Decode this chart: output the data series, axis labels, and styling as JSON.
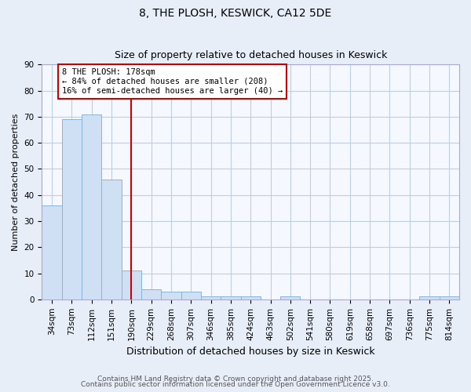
{
  "title1": "8, THE PLOSH, KESWICK, CA12 5DE",
  "title2": "Size of property relative to detached houses in Keswick",
  "xlabel": "Distribution of detached houses by size in Keswick",
  "ylabel": "Number of detached properties",
  "categories": [
    "34sqm",
    "73sqm",
    "112sqm",
    "151sqm",
    "190sqm",
    "229sqm",
    "268sqm",
    "307sqm",
    "346sqm",
    "385sqm",
    "424sqm",
    "463sqm",
    "502sqm",
    "541sqm",
    "580sqm",
    "619sqm",
    "658sqm",
    "697sqm",
    "736sqm",
    "775sqm",
    "814sqm"
  ],
  "values": [
    36,
    69,
    71,
    46,
    11,
    4,
    3,
    3,
    1,
    1,
    1,
    0,
    1,
    0,
    0,
    0,
    0,
    0,
    0,
    1,
    1
  ],
  "bar_color": "#cfe0f5",
  "bar_edge_color": "#89b4d9",
  "vline_x_index": 4,
  "vline_color": "#cc0000",
  "annotation_text": "8 THE PLOSH: 178sqm\n← 84% of detached houses are smaller (208)\n16% of semi-detached houses are larger (40) →",
  "annotation_box_color": "#cc0000",
  "ylim": [
    0,
    90
  ],
  "yticks": [
    0,
    10,
    20,
    30,
    40,
    50,
    60,
    70,
    80,
    90
  ],
  "footnote1": "Contains HM Land Registry data © Crown copyright and database right 2025.",
  "footnote2": "Contains public sector information licensed under the Open Government Licence v3.0.",
  "bg_color": "#e8eef8",
  "plot_bg_color": "#f5f8ff",
  "grid_color": "#c0cfe0",
  "title_fontsize": 10,
  "subtitle_fontsize": 9,
  "xlabel_fontsize": 9,
  "ylabel_fontsize": 8,
  "tick_fontsize": 7.5,
  "annot_fontsize": 7.5,
  "footnote_fontsize": 6.5
}
